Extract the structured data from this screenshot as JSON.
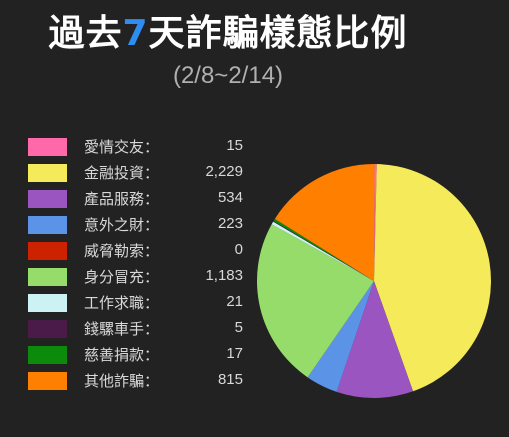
{
  "header": {
    "title_prefix": "過去",
    "title_number": "7",
    "title_suffix": "天詐騙樣態比例",
    "subtitle": "(2/8~2/14)"
  },
  "chart_data": {
    "type": "pie",
    "title": "過去7天詐騙樣態比例",
    "subtitle": "(2/8~2/14)",
    "legend_position": "left",
    "categories": [
      "愛情交友",
      "金融投資",
      "產品服務",
      "意外之財",
      "威脅勒索",
      "身分冒充",
      "工作求職",
      "錢騾車手",
      "慈善捐款",
      "其他詐騙"
    ],
    "values": [
      15,
      2229,
      534,
      223,
      0,
      1183,
      21,
      5,
      17,
      815
    ],
    "value_labels": [
      "15",
      "2,229",
      "534",
      "223",
      "0",
      "1,183",
      "21",
      "5",
      "17",
      "815"
    ],
    "colors": [
      "#ff69aa",
      "#f5ea5a",
      "#9b55c0",
      "#5b93e6",
      "#cc2200",
      "#96dc6a",
      "#cdf2f4",
      "#4a1a48",
      "#0c8a0c",
      "#ff7f00"
    ],
    "label_separator": "："
  }
}
